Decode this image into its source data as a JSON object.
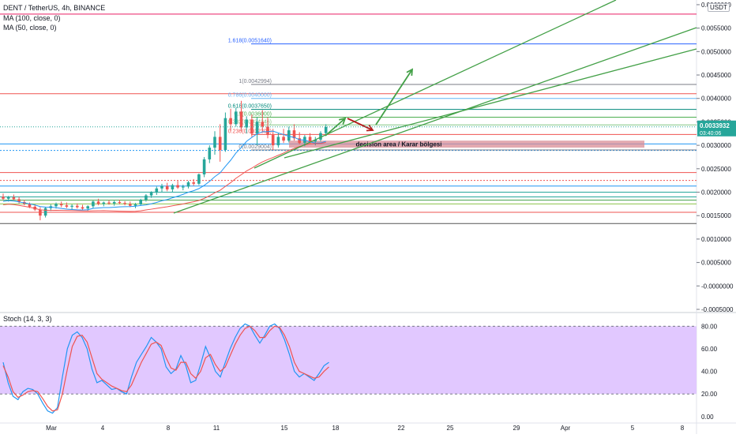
{
  "header": {
    "symbol_line": "DENT / TetherUS, 4h, BINANCE",
    "ma100_label": "MA (100, close, 0)",
    "ma50_label": "MA (50, close, 0)",
    "quote_currency": "USDT"
  },
  "price_badge": {
    "price": "0.0033932",
    "countdown": "03:40:06",
    "color": "#26a69a"
  },
  "stoch_label": "Stoch (14, 3, 3)",
  "annotation": {
    "text": "decision area / Karar bölgesi",
    "color": "#d98c95"
  },
  "colors": {
    "up": "#26a69a",
    "down": "#ef5350",
    "ma50": "#2196f3",
    "ma100": "#ef5350",
    "channel": "#43a047",
    "arrow_up": "#43a047",
    "arrow_down": "#b71c1c",
    "stoch_k": "#2196f3",
    "stoch_d": "#ef5350",
    "stoch_band": "#e1c8ff"
  },
  "chart_data": [
    {
      "type": "candlestick",
      "title": "DENT / TetherUS, 4h, BINANCE",
      "x_ticks": [
        "Mar",
        "4",
        "8",
        "11",
        "15",
        "18",
        "22",
        "25",
        "29",
        "Apr",
        "5",
        "8"
      ],
      "y_ticks": [
        "0.0060000",
        "0.0055000",
        "0.0050000",
        "0.0045000",
        "0.0040000",
        "0.0035000",
        "0.0030000",
        "0.0025000",
        "0.0020000",
        "0.0015000",
        "0.0010000",
        "0.0005000",
        "-0.0000000",
        "-0.0005000"
      ],
      "ylim": [
        -0.0005,
        0.0061
      ],
      "fibonacci": [
        {
          "label": "1.618(0.0051640)",
          "value": 0.005164,
          "color": "#2962ff"
        },
        {
          "label": "1(0.0042994)",
          "value": 0.0042994,
          "color": "#787b86"
        },
        {
          "label": "0.786(0.0040000)",
          "value": 0.004,
          "color": "#64b5f6"
        },
        {
          "label": "0.618(0.0037650)",
          "value": 0.003765,
          "color": "#00897b"
        },
        {
          "label": "0.5(0.0036000)",
          "value": 0.0036,
          "color": "#4caf50"
        },
        {
          "label": "0.382(0.0034346)",
          "value": 0.0034346,
          "color": "#81c784"
        },
        {
          "label": "0.236(0.0032308)",
          "value": 0.0032308,
          "color": "#ef5350"
        },
        {
          "label": "0(0.0029004)",
          "value": 0.0029004,
          "color": "#787b86"
        }
      ],
      "horizontal_levels": [
        {
          "value": 0.0058,
          "color": "#e91e63"
        },
        {
          "value": 0.0041,
          "color": "#ef5350"
        },
        {
          "value": 0.00303,
          "color": "#2196f3"
        },
        {
          "value": 0.00289,
          "color": "#2196f3",
          "dashed": true
        },
        {
          "value": 0.00242,
          "color": "#ef5350"
        },
        {
          "value": 0.00225,
          "color": "#ef5350",
          "dashed": true
        },
        {
          "value": 0.00213,
          "color": "#2196f3"
        },
        {
          "value": 0.002,
          "color": "#26a69a"
        },
        {
          "value": 0.0019,
          "color": "#26a69a"
        },
        {
          "value": 0.00183,
          "color": "#43a047"
        },
        {
          "value": 0.00175,
          "color": "#8bc34a"
        },
        {
          "value": 0.00157,
          "color": "#ef5350"
        },
        {
          "value": 0.00133,
          "color": "#555555"
        }
      ],
      "series": [
        {
          "name": "DENT / TetherUS",
          "candles": [
            [
              0.0019,
              0.00197,
              0.00183,
              0.00186
            ],
            [
              0.00186,
              0.00192,
              0.0018,
              0.00189
            ],
            [
              0.00189,
              0.00195,
              0.00183,
              0.00185
            ],
            [
              0.00185,
              0.0019,
              0.00176,
              0.00179
            ],
            [
              0.00179,
              0.00184,
              0.00172,
              0.00175
            ],
            [
              0.00175,
              0.00178,
              0.00166,
              0.00169
            ],
            [
              0.00169,
              0.00174,
              0.0016,
              0.00163
            ],
            [
              0.00163,
              0.00168,
              0.0014,
              0.0015
            ],
            [
              0.0015,
              0.00168,
              0.00146,
              0.00166
            ],
            [
              0.00166,
              0.00174,
              0.0016,
              0.0017
            ],
            [
              0.0017,
              0.00178,
              0.00165,
              0.00175
            ],
            [
              0.00175,
              0.0018,
              0.00168,
              0.00172
            ],
            [
              0.00172,
              0.00178,
              0.00166,
              0.00169
            ],
            [
              0.00169,
              0.00174,
              0.00163,
              0.00171
            ],
            [
              0.00171,
              0.00176,
              0.00165,
              0.00168
            ],
            [
              0.00168,
              0.00173,
              0.00162,
              0.00165
            ],
            [
              0.00165,
              0.00172,
              0.0016,
              0.0017
            ],
            [
              0.0017,
              0.00182,
              0.00166,
              0.0018
            ],
            [
              0.0018,
              0.00186,
              0.00172,
              0.00175
            ],
            [
              0.00175,
              0.0018,
              0.0017,
              0.00178
            ],
            [
              0.00178,
              0.00183,
              0.00173,
              0.00176
            ],
            [
              0.00176,
              0.00182,
              0.00171,
              0.00179
            ],
            [
              0.00179,
              0.00184,
              0.00174,
              0.00177
            ],
            [
              0.00177,
              0.00181,
              0.00172,
              0.00175
            ],
            [
              0.00175,
              0.0018,
              0.00168,
              0.00171
            ],
            [
              0.00171,
              0.00177,
              0.00166,
              0.00174
            ],
            [
              0.00174,
              0.00186,
              0.00172,
              0.00184
            ],
            [
              0.00184,
              0.00196,
              0.0018,
              0.00193
            ],
            [
              0.00193,
              0.00202,
              0.00188,
              0.00199
            ],
            [
              0.00199,
              0.00212,
              0.00194,
              0.00208
            ],
            [
              0.00208,
              0.00218,
              0.002,
              0.00213
            ],
            [
              0.00213,
              0.0022,
              0.00202,
              0.00206
            ],
            [
              0.00206,
              0.00218,
              0.002,
              0.00215
            ],
            [
              0.00215,
              0.00224,
              0.00207,
              0.0021
            ],
            [
              0.0021,
              0.00216,
              0.00204,
              0.00212
            ],
            [
              0.00212,
              0.00224,
              0.00208,
              0.00221
            ],
            [
              0.00221,
              0.00228,
              0.00214,
              0.00218
            ],
            [
              0.00218,
              0.0024,
              0.00215,
              0.00238
            ],
            [
              0.00238,
              0.00275,
              0.00232,
              0.0027
            ],
            [
              0.0027,
              0.003,
              0.00262,
              0.00295
            ],
            [
              0.00295,
              0.0033,
              0.0028,
              0.00318
            ],
            [
              0.00318,
              0.00345,
              0.00265,
              0.0029
            ],
            [
              0.0029,
              0.0037,
              0.00286,
              0.00358
            ],
            [
              0.00358,
              0.00378,
              0.0033,
              0.00345
            ],
            [
              0.00345,
              0.0038,
              0.0034,
              0.00372
            ],
            [
              0.00372,
              0.00395,
              0.0033,
              0.00338
            ],
            [
              0.00338,
              0.00362,
              0.00325,
              0.00355
            ],
            [
              0.00355,
              0.00366,
              0.00318,
              0.00325
            ],
            [
              0.00325,
              0.0036,
              0.003,
              0.0035
            ],
            [
              0.0035,
              0.00375,
              0.0033,
              0.0034
            ],
            [
              0.0034,
              0.0036,
              0.00315,
              0.00322
            ],
            [
              0.00322,
              0.00335,
              0.0029,
              0.003
            ],
            [
              0.003,
              0.00326,
              0.00295,
              0.00318
            ],
            [
              0.00318,
              0.00335,
              0.00305,
              0.0031
            ],
            [
              0.0031,
              0.0034,
              0.00306,
              0.00332
            ],
            [
              0.00332,
              0.00345,
              0.0031,
              0.00315
            ],
            [
              0.00315,
              0.00328,
              0.00302,
              0.00305
            ],
            [
              0.00305,
              0.00322,
              0.00298,
              0.00318
            ],
            [
              0.00318,
              0.00326,
              0.00304,
              0.00308
            ],
            [
              0.00308,
              0.00318,
              0.003,
              0.00312
            ],
            [
              0.00312,
              0.0033,
              0.00308,
              0.00326
            ],
            [
              0.00326,
              0.00345,
              0.00322,
              0.00339
            ]
          ]
        }
      ]
    },
    {
      "type": "line",
      "title": "Stoch (14, 3, 3)",
      "y_ticks": [
        "80.00",
        "60.00",
        "40.00",
        "20.00",
        "0.00"
      ],
      "ylim": [
        -5,
        90
      ],
      "band": [
        20,
        80
      ],
      "series": [
        {
          "values": [
            48,
            30,
            18,
            15,
            22,
            25,
            24,
            20,
            12,
            5,
            3,
            8,
            35,
            60,
            72,
            75,
            70,
            60,
            42,
            30,
            32,
            28,
            24,
            25,
            22,
            20,
            35,
            48,
            55,
            62,
            70,
            66,
            60,
            44,
            38,
            42,
            54,
            45,
            30,
            32,
            46,
            62,
            52,
            40,
            35,
            48,
            60,
            70,
            78,
            82,
            80,
            72,
            65,
            72,
            80,
            82,
            78,
            68,
            55,
            40,
            35,
            38,
            35,
            32,
            38,
            45,
            48
          ]
        },
        {
          "values": [
            45,
            35,
            22,
            17,
            19,
            22,
            23,
            22,
            16,
            9,
            5,
            6,
            20,
            42,
            62,
            71,
            72,
            66,
            52,
            38,
            33,
            30,
            27,
            25,
            23,
            22,
            28,
            38,
            48,
            56,
            64,
            66,
            63,
            52,
            43,
            41,
            48,
            48,
            38,
            34,
            40,
            52,
            55,
            46,
            40,
            44,
            54,
            64,
            72,
            78,
            80,
            76,
            70,
            70,
            76,
            80,
            79,
            72,
            62,
            48,
            40,
            38,
            36,
            34,
            35,
            40,
            44
          ]
        }
      ]
    }
  ]
}
